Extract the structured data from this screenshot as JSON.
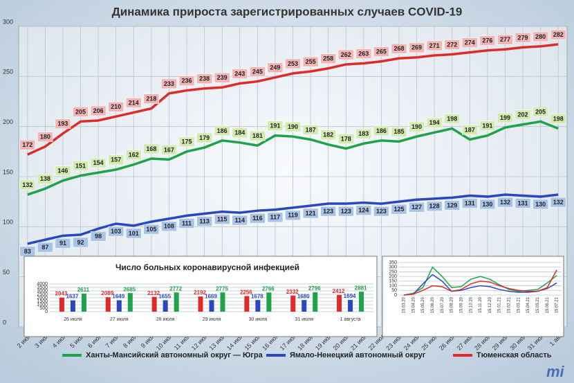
{
  "chart_data": [
    {
      "type": "line",
      "title": "Динамика прироста зарегистрированных случаев COVID-19",
      "categories": [
        "2 июл",
        "3 июл",
        "4 июл",
        "5 июл",
        "6 июл",
        "7 июл",
        "8 июл",
        "9 июл",
        "10 июл",
        "11 июл",
        "12 июл",
        "13 июл",
        "14 июл",
        "15 июл",
        "16 июл",
        "17 июл",
        "18 июл",
        "19 июл",
        "20 июл",
        "21 июл",
        "22 июл",
        "23 июл",
        "24 июл",
        "25 июл",
        "26 июл",
        "27 июл",
        "28 июл",
        "29 июл",
        "30 июл",
        "31 июл",
        "1 авг"
      ],
      "series": [
        {
          "name": "Ханты-Мансийский автономный округ — Югра",
          "color": "#1fa24a",
          "label_color": "#d3ebae",
          "values": [
            132,
            138,
            146,
            151,
            154,
            157,
            162,
            168,
            167,
            175,
            179,
            186,
            184,
            181,
            191,
            190,
            187,
            182,
            178,
            183,
            186,
            185,
            190,
            194,
            198,
            187,
            191,
            199,
            202,
            205,
            198
          ]
        },
        {
          "name": "Ямало-Ненецкий автономный округ",
          "color": "#2a47c0",
          "label_color": "#a9c3e6",
          "values": [
            83,
            87,
            91,
            92,
            98,
            103,
            101,
            105,
            108,
            111,
            113,
            115,
            114,
            116,
            117,
            119,
            121,
            123,
            123,
            124,
            123,
            125,
            127,
            128,
            129,
            131,
            130,
            132,
            131,
            130,
            132
          ]
        },
        {
          "name": "Тюменская область",
          "color": "#e02a2a",
          "label_color": "#f2b5b5",
          "values": [
            172,
            180,
            193,
            205,
            206,
            210,
            214,
            218,
            233,
            236,
            238,
            239,
            243,
            245,
            249,
            253,
            255,
            258,
            262,
            263,
            265,
            268,
            269,
            271,
            272,
            274,
            276,
            277,
            279,
            280,
            282
          ]
        }
      ],
      "ylim": [
        0,
        300
      ],
      "yticks": [
        0,
        50,
        100,
        150,
        200,
        250,
        300
      ],
      "grid": true,
      "logo": "mi"
    },
    {
      "type": "bar",
      "title": "Число больных коронавирусной  инфекцией",
      "categories": [
        "26 июля",
        "27 июля",
        "28 июля",
        "29 июля",
        "30 июля",
        "31 июля",
        "1 августа"
      ],
      "series": [
        {
          "color": "#e02a2a",
          "values": [
            2043,
            2089,
            2132,
            2192,
            2256,
            2332,
            2412
          ]
        },
        {
          "color": "#2a47c0",
          "values": [
            1637,
            1649,
            1655,
            1669,
            1678,
            1680,
            1694
          ]
        },
        {
          "color": "#1fa24a",
          "values": [
            2611,
            2685,
            2772,
            2775,
            2766,
            2796,
            2881
          ]
        }
      ],
      "ylim": [
        0,
        4000
      ],
      "yticks": [
        0,
        500,
        1000,
        1500,
        2000,
        2500,
        3000,
        3500,
        4000
      ],
      "grid": true
    },
    {
      "type": "line",
      "categories": [
        "15.03.20",
        "15.04.20",
        "15.05.20",
        "15.06.20",
        "15.07.20",
        "15.08.20",
        "15.09.20",
        "15.10.20",
        "15.11.20",
        "15.12.20",
        "15.01.21",
        "15.02.21",
        "15.03.21",
        "15.04.21",
        "15.05.21",
        "15.06.21",
        "15.07.21"
      ],
      "series": [
        {
          "color": "#1fa24a",
          "values": [
            0,
            20,
            80,
            300,
            200,
            80,
            90,
            170,
            200,
            170,
            110,
            60,
            40,
            50,
            60,
            130,
            210
          ]
        },
        {
          "color": "#2a47c0",
          "values": [
            0,
            10,
            120,
            220,
            150,
            40,
            50,
            80,
            100,
            90,
            60,
            40,
            30,
            30,
            40,
            70,
            130
          ]
        },
        {
          "color": "#e02a2a",
          "values": [
            0,
            10,
            50,
            100,
            90,
            40,
            60,
            120,
            150,
            140,
            100,
            70,
            50,
            40,
            40,
            80,
            270
          ]
        }
      ],
      "ylim": [
        0,
        350
      ],
      "yticks": [
        0,
        50,
        100,
        150,
        200,
        250,
        300,
        350
      ],
      "grid": true
    }
  ]
}
